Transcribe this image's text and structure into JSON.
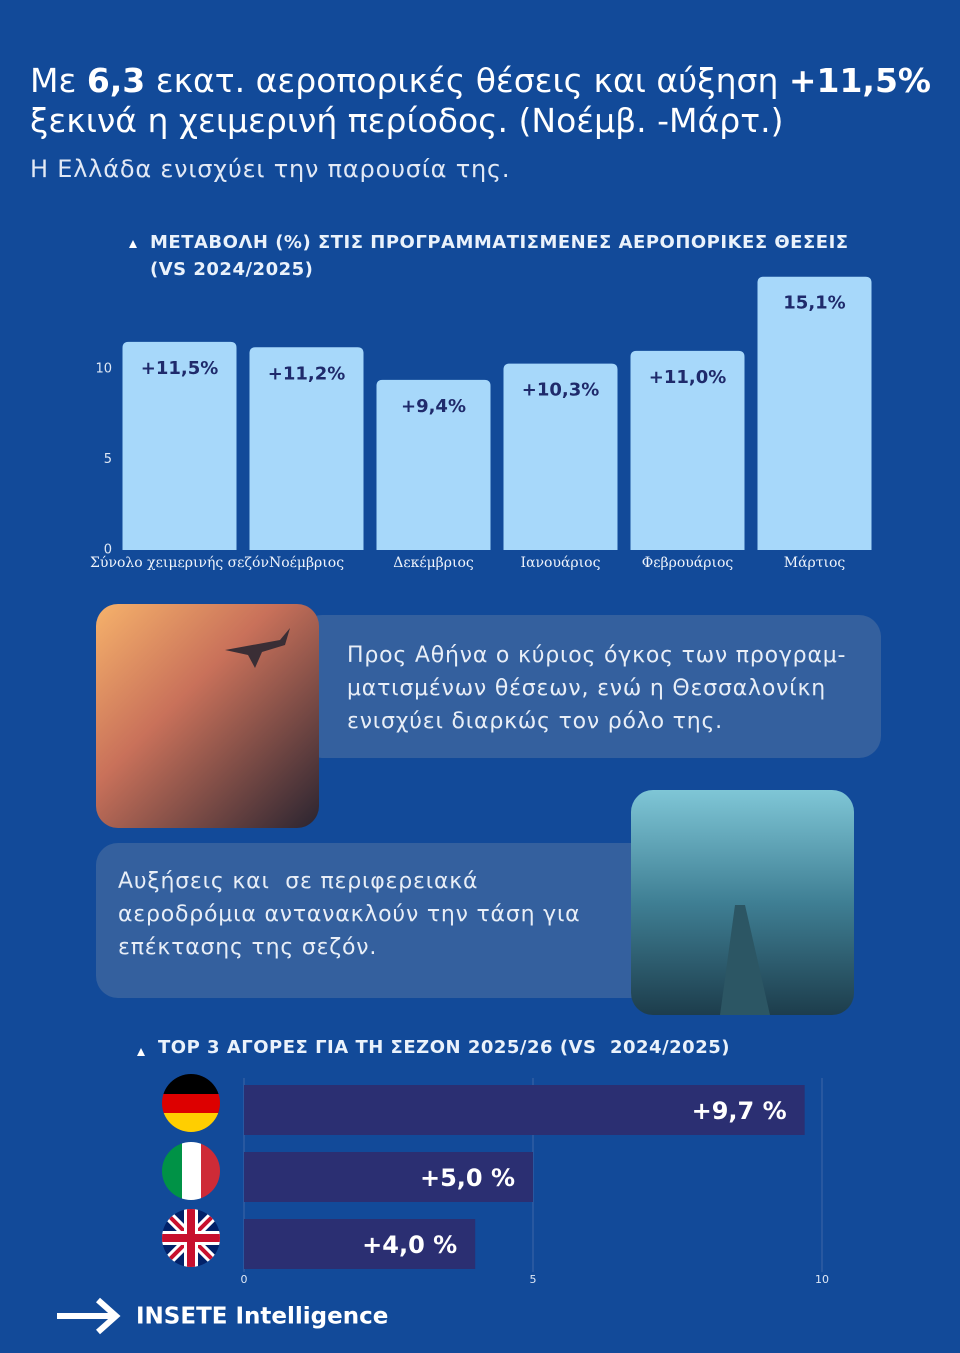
{
  "headline": {
    "parts": [
      "Με ",
      "6,3",
      " εκατ. αεροπορικές θέσεις και αύξηση ",
      "+11,5%",
      "ξεκινά η χειμερινή περίοδος. (Νοέμβ. -Μάρτ.)"
    ],
    "subtitle": "Η Ελλάδα ενισχύει την παρουσία της."
  },
  "chart_data": [
    {
      "type": "bar",
      "title": [
        "ΜΕΤΑΒΟΛΗ (%) ΣΤΙΣ ΠΡΟΓΡΑΜΜΑΤΙΣΜΕΝΕΣ ΑΕΡΟΠΟΡΙΚΕΣ ΘΕΣΕΙΣ",
        "(VS 2024/2025)"
      ],
      "categories": [
        "Σύνολο χειμερινής σεζόν",
        "Νοέμβριος",
        "Δεκέμβριος",
        "Ιανουάριος",
        "Φεβρουάριος",
        "Μάρτιος"
      ],
      "values": [
        11.5,
        11.2,
        9.4,
        10.3,
        11.0,
        15.1
      ],
      "value_labels": [
        "+11,5%",
        "+11,2%",
        "+9,4%",
        "+10,3%",
        "+11,0%",
        "15,1%"
      ],
      "color": "#a7d8fa",
      "ylim": [
        0,
        15.5
      ],
      "yticks": [
        0,
        5,
        10
      ]
    },
    {
      "type": "hbar",
      "title": [
        "TOP 3 ΑΓΟΡΕΣ ΓΙΑ ΤΗ ΣΕΖΟΝ 2025/26 (VS  2024/2025)"
      ],
      "categories": [
        null,
        null,
        null
      ],
      "values": [
        9.7,
        5.0,
        4.0
      ],
      "value_labels": [
        "+9,7 %",
        "+5,0 %",
        "+4,0 %"
      ],
      "color": "#2b2f72",
      "xlim": [
        0,
        10
      ],
      "xticks": [
        0,
        5,
        10
      ]
    }
  ],
  "notes": [
    {
      "lines": [
        "Προς Αθήνα ο κύριος όγκος των προγραμ-",
        "ματισμένων θέσεων, ενώ η Θεσσαλονίκη",
        "ενισχύει διαρκώς τον ρόλο της."
      ]
    },
    {
      "lines": [
        "Αυξήσεις και  σε περιφερειακά",
        "αεροδρόμια αντανακλούν την τάση για",
        "επέκτασης της σεζόν."
      ]
    }
  ],
  "footer": {
    "brand": "INSETE Intelligence"
  }
}
